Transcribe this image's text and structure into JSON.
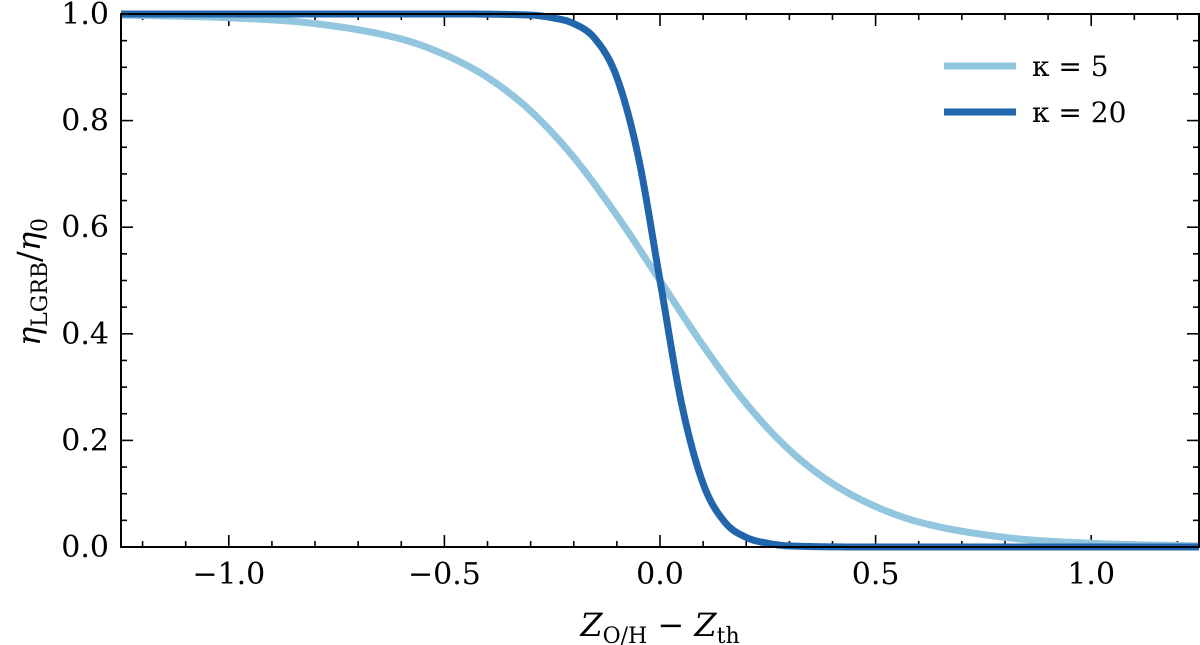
{
  "chart_data": {
    "type": "line",
    "xlabel": "Z_O/H − Z_th",
    "ylabel": "η_LGRB/η_0",
    "xlim": [
      -1.25,
      1.25
    ],
    "ylim": [
      0.0,
      1.0
    ],
    "x_ticks": [
      "−1.0",
      "−0.5",
      "0.0",
      "0.5",
      "1.0"
    ],
    "y_ticks": [
      "0.0",
      "0.2",
      "0.4",
      "0.6",
      "0.8",
      "1.0"
    ],
    "grid": false,
    "legend_position": "top-right",
    "series": [
      {
        "name": "κ = 5",
        "color": "#92c5de",
        "x": [
          -1.25,
          -1.0,
          -0.8,
          -0.6,
          -0.5,
          -0.4,
          -0.3,
          -0.2,
          -0.1,
          0.0,
          0.1,
          0.2,
          0.3,
          0.4,
          0.5,
          0.6,
          0.8,
          1.0,
          1.25
        ],
        "y": [
          0.998,
          0.993,
          0.982,
          0.953,
          0.924,
          0.881,
          0.818,
          0.731,
          0.622,
          0.5,
          0.378,
          0.269,
          0.182,
          0.119,
          0.076,
          0.047,
          0.018,
          0.007,
          0.002
        ]
      },
      {
        "name": "κ = 20",
        "color": "#2166ac",
        "x": [
          -1.25,
          -0.5,
          -0.3,
          -0.25,
          -0.2,
          -0.15,
          -0.1,
          -0.05,
          0.0,
          0.05,
          0.1,
          0.15,
          0.2,
          0.25,
          0.3,
          0.5,
          1.25
        ],
        "y": [
          1.0,
          1.0,
          0.998,
          0.993,
          0.982,
          0.953,
          0.881,
          0.731,
          0.5,
          0.269,
          0.119,
          0.047,
          0.018,
          0.007,
          0.002,
          0.0,
          0.0
        ]
      }
    ]
  }
}
